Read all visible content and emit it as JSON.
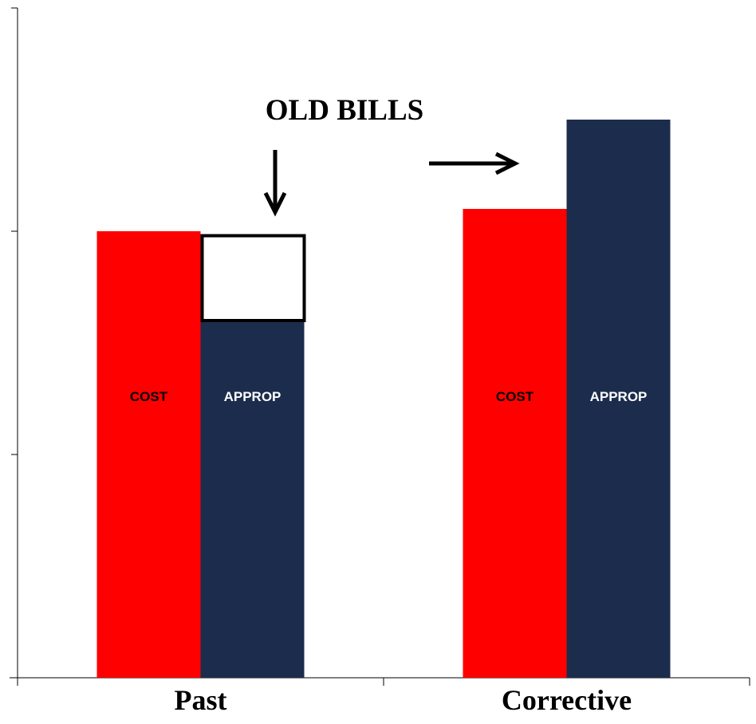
{
  "chart_data": {
    "type": "bar",
    "categories": [
      "Past",
      "Corrective"
    ],
    "series": [
      {
        "name": "COST",
        "color": "#ff0000",
        "label_color": "#000000",
        "values": [
          100,
          105
        ]
      },
      {
        "name": "APPROP",
        "color": "#1c2c4c",
        "label_color": "#ffffff",
        "values": [
          80,
          125
        ]
      }
    ],
    "ylim": [
      0,
      150
    ],
    "ytick_count": 3,
    "grid": false,
    "legend": "none",
    "annotation": {
      "text": "OLD BILLS",
      "box_range": [
        80,
        99
      ],
      "box_category": "Past",
      "box_series": "APPROP",
      "box_fill": "#ffffff"
    }
  }
}
